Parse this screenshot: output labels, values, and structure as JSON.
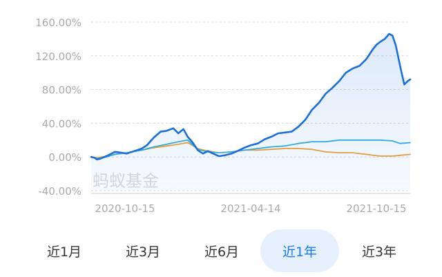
{
  "chart_data": {
    "type": "line",
    "y_ticks": [
      "160.00%",
      "120.00%",
      "80.00%",
      "40.00%",
      "0.00%",
      "-40.00%"
    ],
    "y_tick_values": [
      160,
      120,
      80,
      40,
      0,
      -40
    ],
    "ylim": [
      -40,
      160
    ],
    "x_ticks": [
      "2020-10-15",
      "2021-04-14",
      "2021-10-15"
    ],
    "grid": true,
    "watermark": "蚂蚁基金",
    "x_range": [
      "2020-10-15",
      "2021-10-27"
    ],
    "series": [
      {
        "color": "#1a6fdc",
        "filled": true,
        "x": [
          "2020-10-15",
          "2020-10-19",
          "2020-10-22",
          "2020-10-26",
          "2020-11-02",
          "2020-11-06",
          "2020-11-12",
          "2020-11-20",
          "2020-11-26",
          "2020-12-05",
          "2020-12-14",
          "2020-12-20",
          "2020-12-28",
          "2021-01-05",
          "2021-01-12",
          "2021-01-20",
          "2021-01-26",
          "2021-02-01",
          "2021-02-06",
          "2021-02-12",
          "2021-02-18",
          "2021-02-24",
          "2021-03-02",
          "2021-03-08",
          "2021-03-15",
          "2021-03-22",
          "2021-03-30",
          "2021-04-08",
          "2021-04-14",
          "2021-04-22",
          "2021-04-30",
          "2021-05-08",
          "2021-05-16",
          "2021-05-24",
          "2021-06-01",
          "2021-06-09",
          "2021-06-17",
          "2021-06-25",
          "2021-07-03",
          "2021-07-11",
          "2021-07-19",
          "2021-07-27",
          "2021-08-04",
          "2021-08-12",
          "2021-08-20",
          "2021-08-28",
          "2021-09-05",
          "2021-09-13",
          "2021-09-17",
          "2021-09-22",
          "2021-09-27",
          "2021-10-02",
          "2021-10-06",
          "2021-10-10",
          "2021-10-15",
          "2021-10-20",
          "2021-10-24",
          "2021-10-27"
        ],
        "y": [
          0,
          -1,
          -3,
          -2,
          1,
          3,
          6,
          5,
          4,
          7,
          10,
          14,
          23,
          30,
          31,
          34,
          28,
          33,
          24,
          17,
          8,
          4,
          7,
          4,
          1,
          2,
          4,
          8,
          11,
          14,
          16,
          21,
          24,
          28,
          29,
          30,
          36,
          44,
          56,
          64,
          75,
          82,
          90,
          100,
          105,
          108,
          116,
          128,
          133,
          137,
          140,
          146,
          144,
          132,
          108,
          86,
          90,
          92
        ]
      },
      {
        "color": "#35aee0",
        "filled": false,
        "x": [
          "2020-10-15",
          "2020-10-22",
          "2020-11-02",
          "2020-11-12",
          "2020-11-26",
          "2020-12-14",
          "2020-12-28",
          "2021-01-12",
          "2021-01-26",
          "2021-02-06",
          "2021-02-18",
          "2021-03-02",
          "2021-03-15",
          "2021-03-30",
          "2021-04-14",
          "2021-04-30",
          "2021-05-16",
          "2021-06-01",
          "2021-06-17",
          "2021-07-03",
          "2021-07-19",
          "2021-08-04",
          "2021-08-20",
          "2021-09-05",
          "2021-09-22",
          "2021-10-06",
          "2021-10-15",
          "2021-10-27"
        ],
        "y": [
          0,
          -2,
          0,
          3,
          5,
          8,
          12,
          15,
          18,
          20,
          9,
          6,
          5,
          6,
          8,
          10,
          12,
          13,
          16,
          18,
          18,
          20,
          20,
          20,
          20,
          19,
          16,
          17
        ]
      },
      {
        "color": "#f0a030",
        "filled": false,
        "x": [
          "2020-10-15",
          "2020-10-22",
          "2020-11-02",
          "2020-11-12",
          "2020-11-26",
          "2020-12-14",
          "2020-12-28",
          "2021-01-12",
          "2021-01-26",
          "2021-02-06",
          "2021-02-18",
          "2021-03-02",
          "2021-03-15",
          "2021-03-30",
          "2021-04-14",
          "2021-04-30",
          "2021-05-16",
          "2021-06-01",
          "2021-06-17",
          "2021-07-03",
          "2021-07-19",
          "2021-08-04",
          "2021-08-20",
          "2021-09-05",
          "2021-09-22",
          "2021-10-06",
          "2021-10-15",
          "2021-10-27"
        ],
        "y": [
          0,
          -1,
          1,
          3,
          5,
          8,
          11,
          13,
          15,
          17,
          10,
          7,
          5,
          6,
          8,
          8,
          9,
          10,
          10,
          9,
          6,
          5,
          5,
          3,
          1,
          1,
          2,
          3
        ]
      }
    ]
  },
  "tabs": [
    {
      "label": "近1月",
      "active": false
    },
    {
      "label": "近3月",
      "active": false
    },
    {
      "label": "近6月",
      "active": false
    },
    {
      "label": "近1年",
      "active": true
    },
    {
      "label": "近3年",
      "active": false
    }
  ]
}
